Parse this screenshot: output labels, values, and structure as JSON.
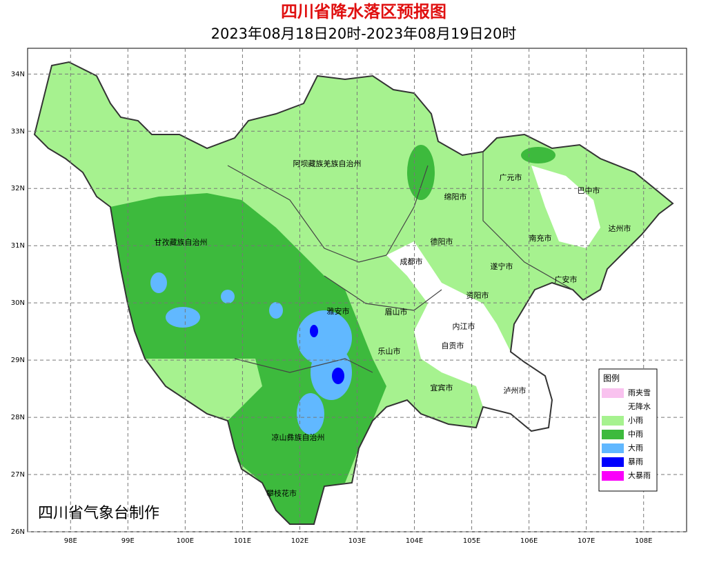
{
  "header": {
    "title": "四川省降水落区预报图",
    "subtitle": "2023年08月18日20时-2023年08月19日20时"
  },
  "map": {
    "xlim": [
      97.25,
      108.75
    ],
    "ylim": [
      26,
      34.45
    ],
    "xticks": [
      {
        "value": 98,
        "label": "98E"
      },
      {
        "value": 99,
        "label": "99E"
      },
      {
        "value": 100,
        "label": "100E"
      },
      {
        "value": 101,
        "label": "101E"
      },
      {
        "value": 102,
        "label": "102E"
      },
      {
        "value": 103,
        "label": "103E"
      },
      {
        "value": 104,
        "label": "104E"
      },
      {
        "value": 105,
        "label": "105E"
      },
      {
        "value": 106,
        "label": "106E"
      },
      {
        "value": 107,
        "label": "107E"
      },
      {
        "value": 108,
        "label": "108E"
      }
    ],
    "yticks": [
      {
        "value": 26,
        "label": "26N"
      },
      {
        "value": 27,
        "label": "27N"
      },
      {
        "value": 28,
        "label": "28N"
      },
      {
        "value": 29,
        "label": "29N"
      },
      {
        "value": 30,
        "label": "30N"
      },
      {
        "value": 31,
        "label": "31N"
      },
      {
        "value": 32,
        "label": "32N"
      },
      {
        "value": 33,
        "label": "33N"
      },
      {
        "value": 34,
        "label": "34N"
      }
    ],
    "grid": true,
    "places": [
      "阿坝藏族羌族自治州",
      "甘孜藏族自治州",
      "广元市",
      "巴中市",
      "绵阳市",
      "达州市",
      "德阳市",
      "南充市",
      "成都市",
      "遂宁市",
      "广安市",
      "资阳市",
      "雅安市",
      "眉山市",
      "内江市",
      "自贡市",
      "乐山市",
      "宜宾市",
      "泸州市",
      "凉山彝族自治州",
      "攀枝花市"
    ]
  },
  "legend": {
    "title": "图例",
    "items": [
      {
        "label": "雨夹雪",
        "color": "#f9c2ef"
      },
      {
        "label": "无降水",
        "color": "#ffffff"
      },
      {
        "label": "小雨",
        "color": "#a6f28f"
      },
      {
        "label": "中雨",
        "color": "#3dba3d"
      },
      {
        "label": "大雨",
        "color": "#61b8ff"
      },
      {
        "label": "暴雨",
        "color": "#0000fe"
      },
      {
        "label": "大暴雨",
        "color": "#fa00fa"
      }
    ]
  },
  "credit": "四川省气象台制作"
}
